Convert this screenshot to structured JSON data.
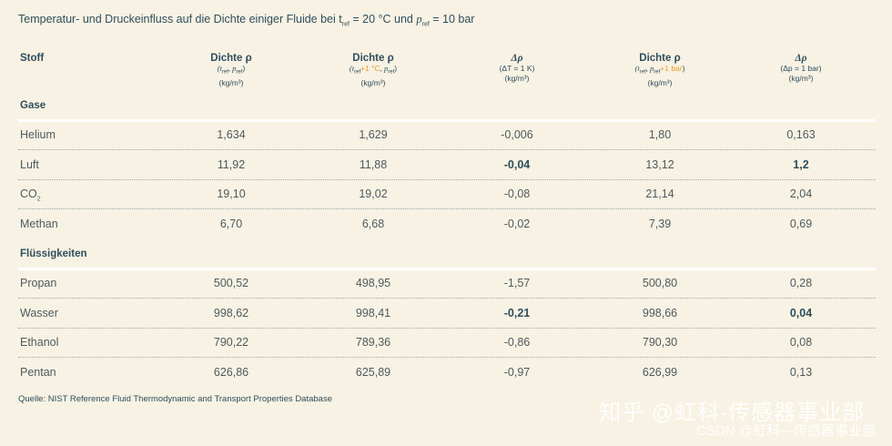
{
  "title": {
    "prefix": "Temperatur- und Druckeinfluss auf die Dichte einiger Fluide bei t",
    "sub1": "ref",
    "mid": " = 20 °C und ",
    "p": "p",
    "sub2": "ref",
    "suffix": " = 10 bar"
  },
  "headers": {
    "stoff": "Stoff",
    "col1": {
      "l1": "Dichte ρ",
      "l2a": "(t",
      "l2b": "ref",
      "l2c": ", p",
      "l2d": "ref",
      "l2e": ")",
      "l3": "(kg/m³)"
    },
    "col2": {
      "l1": "Dichte ρ",
      "l2a": "(t",
      "l2b": "ref",
      "l2c": "+1 °C",
      "l2d": ", p",
      "l2e": "ref",
      "l2f": ")",
      "l3": "(kg/m³)"
    },
    "col3": {
      "l1": "Δρ",
      "l2": "(ΔT = 1 K)",
      "l3": "(kg/m³)"
    },
    "col4": {
      "l1": "Dichte ρ",
      "l2a": "(t",
      "l2b": "ref",
      "l2c": ", p",
      "l2d": "ref",
      "l2e": "+1 bar",
      "l2f": ")",
      "l3": "(kg/m³)"
    },
    "col5": {
      "l1": "Δρ",
      "l2": "(Δp = 1 bar)",
      "l3": "(kg/m³)"
    }
  },
  "sections": {
    "gase": "Gase",
    "fluessig": "Flüssigkeiten"
  },
  "rows": [
    {
      "name": "Helium",
      "sub": "",
      "v1": "1,634",
      "v2": "1,629",
      "v3": "-0,006",
      "v4": "1,80",
      "v5": "0,163"
    },
    {
      "name": "Luft",
      "sub": "",
      "v1": "11,92",
      "v2": "11,88",
      "v3": "-0,04",
      "v4": "13,12",
      "v5": "1,2"
    },
    {
      "name": "CO",
      "sub": "2",
      "v1": "19,10",
      "v2": "19,02",
      "v3": "-0,08",
      "v4": "21,14",
      "v5": "2,04"
    },
    {
      "name": "Methan",
      "sub": "",
      "v1": "6,70",
      "v2": "6,68",
      "v3": "-0,02",
      "v4": "7,39",
      "v5": "0,69"
    },
    {
      "name": "Propan",
      "sub": "",
      "v1": "500,52",
      "v2": "498,95",
      "v3": "-1,57",
      "v4": "500,80",
      "v5": "0,28"
    },
    {
      "name": "Wasser",
      "sub": "",
      "v1": "998,62",
      "v2": "998,41",
      "v3": "-0,21",
      "v4": "998,66",
      "v5": "0,04"
    },
    {
      "name": "Ethanol",
      "sub": "",
      "v1": "790,22",
      "v2": "789,36",
      "v3": "-0,86",
      "v4": "790,30",
      "v5": "0,08"
    },
    {
      "name": "Pentan",
      "sub": "",
      "v1": "626,86",
      "v2": "625,89",
      "v3": "-0,97",
      "v4": "626,99",
      "v5": "0,13"
    }
  ],
  "footer": "Quelle: NIST Reference Fluid Thermodynamic and Transport Properties Database",
  "watermark": {
    "line1": "知乎 @虹科-传感器事业部",
    "line2": "CSDN @虹科—传感器事业部"
  }
}
